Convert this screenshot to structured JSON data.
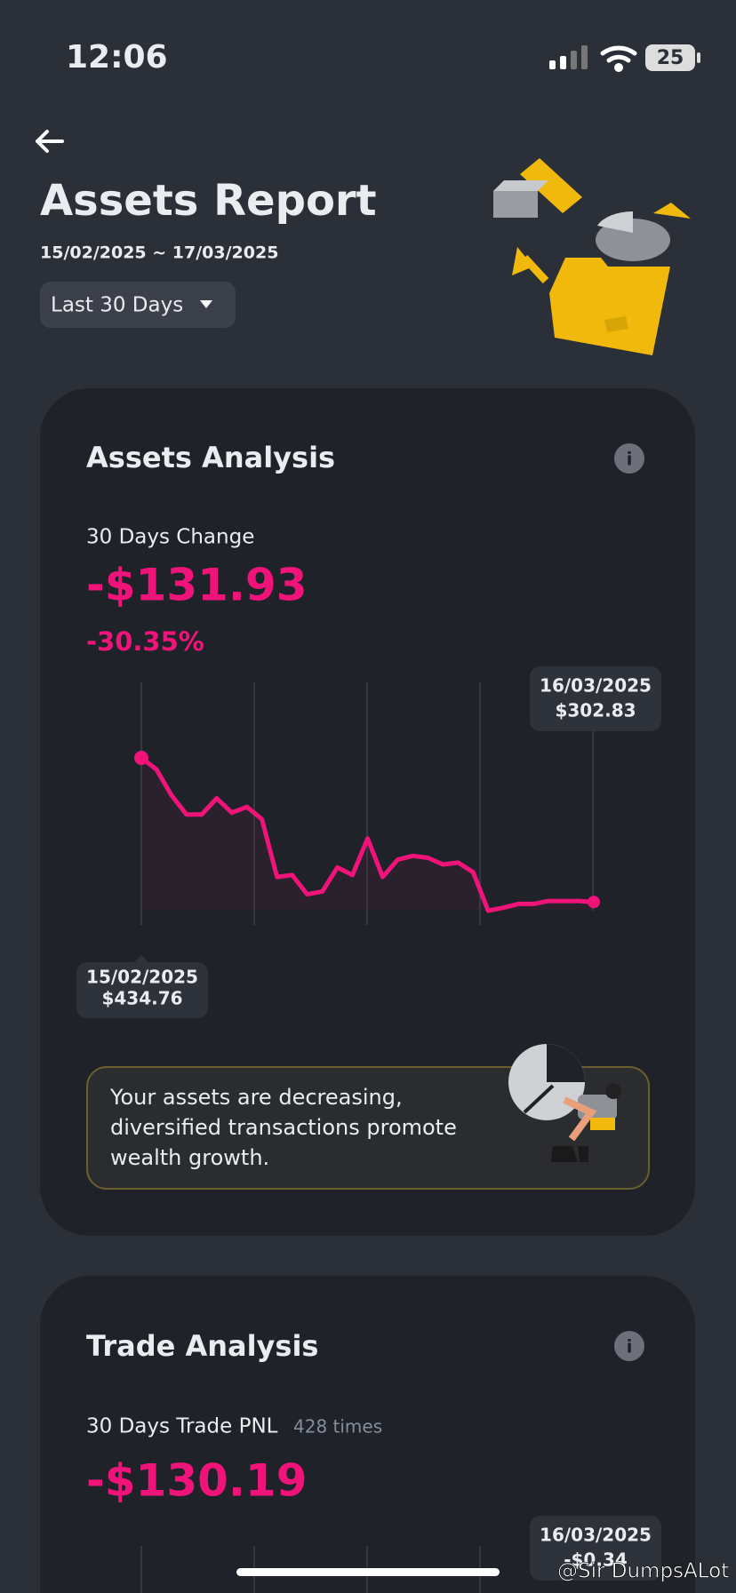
{
  "status_bar": {
    "time": "12:06",
    "battery": "25"
  },
  "header": {
    "title": "Assets Report",
    "date_range": "15/02/2025 ~ 17/03/2025",
    "period_button": "Last 30 Days"
  },
  "assets_card": {
    "title": "Assets Analysis",
    "change_label": "30 Days Change",
    "change_value": "-$131.93",
    "change_percent": "-30.35%",
    "start_tooltip": {
      "date": "15/02/2025",
      "value": "$434.76"
    },
    "end_tooltip": {
      "date": "16/03/2025",
      "value": "$302.83"
    },
    "message": "Your assets are decreasing, diversified transactions promote wealth growth."
  },
  "trade_card": {
    "title": "Trade Analysis",
    "pnl_label": "30 Days Trade PNL",
    "count": "428 times",
    "pnl_value": "-$130.19",
    "end_tooltip": {
      "date": "16/03/2025",
      "value": "-$0.34"
    }
  },
  "watermark": "@Sir DumpsALot",
  "chart_data": {
    "type": "line",
    "series": [
      {
        "color": "#f0147a",
        "values": [
          434.76,
          424.2,
          400.5,
          382.9,
          382.9,
          397.8,
          384.6,
          389.9,
          378.5,
          325.7,
          327.5,
          309.9,
          312.5,
          334.5,
          327.5,
          360.9,
          325.7,
          341.6,
          345.1,
          343.3,
          337.2,
          338.9,
          330.1,
          294.9,
          297.6,
          301.1,
          301.1,
          303.8,
          303.8,
          303.8,
          302.83
        ]
      }
    ]
  }
}
